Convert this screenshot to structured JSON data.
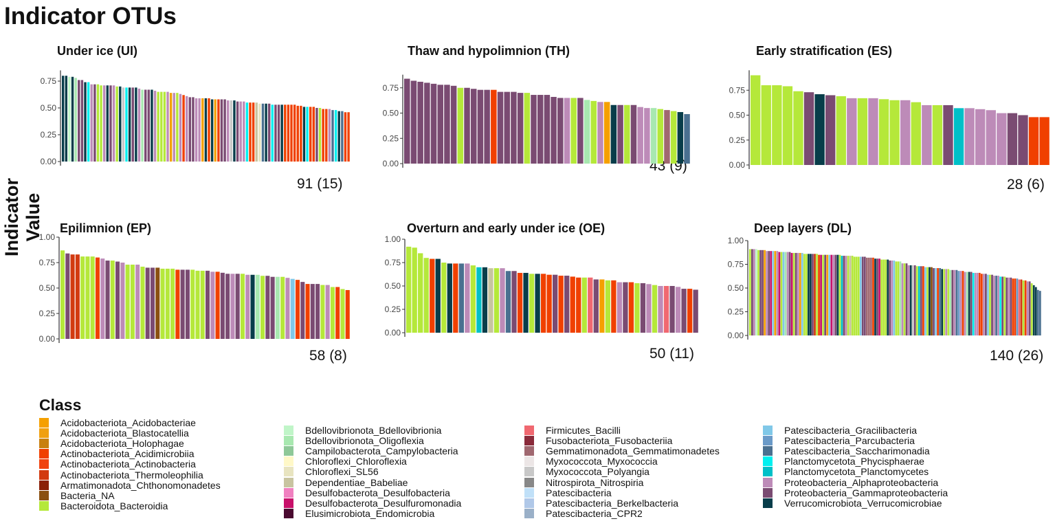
{
  "title": "Indicator OTUs",
  "y_axis_label": "Indicator Value",
  "palette": {
    "O": "#f5a000",
    "Bla": "#f0a010",
    "Hol": "#c88010",
    "R": "#f04000",
    "Ac": "#f04410",
    "T": "#d23a10",
    "Ch": "#8a2008",
    "Bn": "#8a5010",
    "B": "#b5e83a",
    "Bd": "#c0f5c8",
    "Ob": "#a8e8b0",
    "Ca": "#8ec898",
    "Cl": "#fff8c8",
    "C56": "#e8e4c0",
    "Dp": "#c8c4a0",
    "Df": "#f080c0",
    "Ds": "#c8106a",
    "E": "#4a0a30",
    "F": "#f06870",
    "Fu": "#8a2a3a",
    "Gm": "#a06870",
    "Mx": "#ece6e6",
    "Pg": "#c8c8c8",
    "Ni": "#888888",
    "Pa": "#c0e0f8",
    "Be": "#b0c8e8",
    "CPR": "#9ab0c8",
    "Gr": "#80c8e8",
    "P": "#6a9ac8",
    "S": "#4a7090",
    "Ph": "#00f0f0",
    "Pl": "#00c0c8",
    "A": "#bd8bb8",
    "G": "#7a4b72",
    "V": "#083d4a"
  },
  "chart_data": [
    {
      "type": "bar",
      "id": "UI",
      "title": "Under ice (UI)",
      "count_label": "91 (15)",
      "ylim": [
        0,
        0.85
      ],
      "yticks": [
        "0.00",
        "0.25",
        "0.50",
        "0.75"
      ],
      "values": [
        0.8,
        0.8,
        0.79,
        0.79,
        0.78,
        0.76,
        0.76,
        0.74,
        0.74,
        0.72,
        0.72,
        0.72,
        0.71,
        0.71,
        0.71,
        0.71,
        0.71,
        0.7,
        0.7,
        0.69,
        0.69,
        0.69,
        0.69,
        0.69,
        0.68,
        0.67,
        0.67,
        0.67,
        0.67,
        0.66,
        0.65,
        0.65,
        0.65,
        0.65,
        0.64,
        0.64,
        0.64,
        0.63,
        0.62,
        0.61,
        0.6,
        0.6,
        0.59,
        0.59,
        0.59,
        0.59,
        0.59,
        0.58,
        0.58,
        0.58,
        0.58,
        0.58,
        0.57,
        0.57,
        0.57,
        0.56,
        0.56,
        0.56,
        0.55,
        0.55,
        0.55,
        0.55,
        0.54,
        0.54,
        0.54,
        0.54,
        0.53,
        0.53,
        0.53,
        0.53,
        0.53,
        0.53,
        0.53,
        0.53,
        0.52,
        0.52,
        0.51,
        0.51,
        0.51,
        0.51,
        0.5,
        0.5,
        0.49,
        0.49,
        0.49,
        0.48,
        0.48,
        0.47,
        0.47,
        0.46,
        0.46
      ],
      "classes": [
        "V",
        "V",
        "Bd",
        "V",
        "Ob",
        "G",
        "G",
        "V",
        "Ph",
        "A",
        "G",
        "B",
        "B",
        "A",
        "V",
        "G",
        "A",
        "B",
        "V",
        "Pg",
        "Ph",
        "V",
        "G",
        "V",
        "A",
        "Ob",
        "G",
        "G",
        "V",
        "A",
        "B",
        "B",
        "B",
        "A",
        "O",
        "A",
        "B",
        "A",
        "R",
        "A",
        "G",
        "G",
        "A",
        "A",
        "O",
        "V",
        "R",
        "V",
        "O",
        "R",
        "G",
        "G",
        "A",
        "Pg",
        "V",
        "G",
        "A",
        "A",
        "Ph",
        "R",
        "R",
        "Dp",
        "C56",
        "S",
        "V",
        "G",
        "Ph",
        "G",
        "G",
        "V",
        "R",
        "R",
        "R",
        "R",
        "R",
        "R",
        "V",
        "Ph",
        "R",
        "R",
        "G",
        "B",
        "R",
        "R",
        "A",
        "S",
        "Ph",
        "V",
        "S",
        "R",
        "R"
      ]
    },
    {
      "type": "bar",
      "id": "TH",
      "title": "Thaw and hypolimnion (TH)",
      "count_label": "43 (9)",
      "ylim": [
        0,
        0.88
      ],
      "yticks": [
        "0.00",
        "0.25",
        "0.50",
        "0.75"
      ],
      "values": [
        0.84,
        0.82,
        0.81,
        0.8,
        0.79,
        0.78,
        0.78,
        0.77,
        0.75,
        0.75,
        0.74,
        0.73,
        0.73,
        0.73,
        0.71,
        0.71,
        0.71,
        0.7,
        0.7,
        0.68,
        0.68,
        0.68,
        0.66,
        0.65,
        0.65,
        0.65,
        0.65,
        0.63,
        0.62,
        0.61,
        0.61,
        0.58,
        0.58,
        0.58,
        0.58,
        0.56,
        0.55,
        0.55,
        0.54,
        0.53,
        0.52,
        0.51,
        0.49
      ],
      "classes": [
        "G",
        "G",
        "G",
        "G",
        "G",
        "G",
        "G",
        "G",
        "B",
        "G",
        "G",
        "G",
        "G",
        "R",
        "G",
        "G",
        "G",
        "G",
        "B",
        "G",
        "G",
        "G",
        "G",
        "G",
        "A",
        "B",
        "G",
        "Ob",
        "B",
        "A",
        "O",
        "V",
        "G",
        "B",
        "G",
        "A",
        "A",
        "Ob",
        "B",
        "Gm",
        "B",
        "V",
        "S"
      ]
    },
    {
      "type": "bar",
      "id": "ES",
      "title": "Early stratification (ES)",
      "count_label": "28 (6)",
      "ylim": [
        0,
        0.95
      ],
      "yticks": [
        "0.00",
        "0.25",
        "0.50",
        "0.75"
      ],
      "values": [
        0.9,
        0.8,
        0.8,
        0.79,
        0.74,
        0.73,
        0.71,
        0.7,
        0.69,
        0.67,
        0.67,
        0.67,
        0.66,
        0.65,
        0.65,
        0.63,
        0.6,
        0.6,
        0.6,
        0.57,
        0.57,
        0.56,
        0.55,
        0.52,
        0.52,
        0.5,
        0.48,
        0.48
      ],
      "classes": [
        "B",
        "B",
        "B",
        "B",
        "B",
        "G",
        "V",
        "G",
        "B",
        "A",
        "B",
        "A",
        "B",
        "B",
        "A",
        "B",
        "A",
        "B",
        "G",
        "Pl",
        "A",
        "A",
        "A",
        "A",
        "G",
        "G",
        "R",
        "R"
      ]
    },
    {
      "type": "bar",
      "id": "EP",
      "title": "Epilimnion (EP)",
      "count_label": "58 (8)",
      "ylim": [
        0,
        1
      ],
      "yticks": [
        "0.00",
        "0.25",
        "0.50",
        "0.75",
        "1.00"
      ],
      "values": [
        0.87,
        0.84,
        0.83,
        0.83,
        0.81,
        0.81,
        0.81,
        0.8,
        0.79,
        0.77,
        0.77,
        0.76,
        0.75,
        0.73,
        0.73,
        0.73,
        0.71,
        0.7,
        0.7,
        0.7,
        0.69,
        0.69,
        0.69,
        0.68,
        0.68,
        0.68,
        0.68,
        0.67,
        0.67,
        0.67,
        0.66,
        0.66,
        0.65,
        0.64,
        0.64,
        0.64,
        0.64,
        0.63,
        0.63,
        0.63,
        0.62,
        0.62,
        0.61,
        0.61,
        0.61,
        0.6,
        0.59,
        0.58,
        0.56,
        0.54,
        0.54,
        0.54,
        0.53,
        0.53,
        0.51,
        0.51,
        0.49,
        0.48
      ],
      "classes": [
        "B",
        "G",
        "T",
        "T",
        "B",
        "B",
        "B",
        "R",
        "A",
        "G",
        "B",
        "G",
        "A",
        "B",
        "B",
        "A",
        "B",
        "G",
        "G",
        "Bn",
        "B",
        "B",
        "B",
        "R",
        "G",
        "G",
        "B",
        "B",
        "B",
        "G",
        "A",
        "R",
        "G",
        "G",
        "A",
        "G",
        "B",
        "A",
        "V",
        "Ob",
        "B",
        "G",
        "G",
        "Ob",
        "B",
        "A",
        "Gr",
        "R",
        "G",
        "R",
        "G",
        "G",
        "B",
        "A",
        "B",
        "R",
        "B",
        "R"
      ]
    },
    {
      "type": "bar",
      "id": "OE",
      "title": "Overturn and early under ice (OE)",
      "count_label": "50 (11)",
      "ylim": [
        0,
        1
      ],
      "yticks": [
        "0.00",
        "0.25",
        "0.50",
        "0.75",
        "1.00"
      ],
      "values": [
        0.92,
        0.91,
        0.85,
        0.8,
        0.79,
        0.79,
        0.75,
        0.74,
        0.74,
        0.74,
        0.74,
        0.72,
        0.7,
        0.7,
        0.69,
        0.69,
        0.69,
        0.66,
        0.66,
        0.64,
        0.64,
        0.63,
        0.63,
        0.63,
        0.62,
        0.62,
        0.61,
        0.61,
        0.6,
        0.59,
        0.59,
        0.59,
        0.57,
        0.57,
        0.56,
        0.56,
        0.54,
        0.54,
        0.54,
        0.53,
        0.53,
        0.52,
        0.51,
        0.5,
        0.5,
        0.5,
        0.49,
        0.47,
        0.47,
        0.46
      ],
      "classes": [
        "B",
        "B",
        "B",
        "B",
        "R",
        "V",
        "B",
        "V",
        "R",
        "S",
        "A",
        "B",
        "Pl",
        "V",
        "Dp",
        "B",
        "A",
        "S",
        "G",
        "R",
        "V",
        "B",
        "V",
        "R",
        "R",
        "G",
        "R",
        "G",
        "R",
        "R",
        "B",
        "F",
        "G",
        "O",
        "B",
        "R",
        "A",
        "G",
        "R",
        "B",
        "G",
        "A",
        "B",
        "A",
        "F",
        "G",
        "A",
        "G",
        "R",
        "G"
      ]
    },
    {
      "type": "bar",
      "id": "DL",
      "title": "Deep layers (DL)",
      "count_label": "140 (26)",
      "ylim": [
        0,
        1
      ],
      "yticks": [
        "0.00",
        "0.25",
        "0.50",
        "0.75",
        "1.00"
      ],
      "values": [
        0.91,
        0.91,
        0.91,
        0.91,
        0.9,
        0.9,
        0.9,
        0.9,
        0.89,
        0.89,
        0.89,
        0.89,
        0.89,
        0.89,
        0.88,
        0.88,
        0.88,
        0.88,
        0.88,
        0.88,
        0.87,
        0.87,
        0.87,
        0.87,
        0.87,
        0.87,
        0.86,
        0.86,
        0.86,
        0.86,
        0.86,
        0.86,
        0.86,
        0.85,
        0.85,
        0.85,
        0.85,
        0.85,
        0.85,
        0.85,
        0.85,
        0.85,
        0.85,
        0.85,
        0.84,
        0.84,
        0.84,
        0.84,
        0.84,
        0.84,
        0.83,
        0.83,
        0.83,
        0.83,
        0.83,
        0.83,
        0.82,
        0.82,
        0.82,
        0.82,
        0.81,
        0.81,
        0.81,
        0.8,
        0.8,
        0.8,
        0.8,
        0.79,
        0.79,
        0.79,
        0.78,
        0.78,
        0.78,
        0.76,
        0.76,
        0.76,
        0.74,
        0.74,
        0.74,
        0.74,
        0.73,
        0.73,
        0.73,
        0.73,
        0.72,
        0.72,
        0.72,
        0.72,
        0.71,
        0.71,
        0.71,
        0.71,
        0.7,
        0.7,
        0.7,
        0.7,
        0.69,
        0.69,
        0.69,
        0.69,
        0.68,
        0.68,
        0.68,
        0.67,
        0.67,
        0.67,
        0.67,
        0.66,
        0.66,
        0.66,
        0.66,
        0.65,
        0.65,
        0.65,
        0.64,
        0.64,
        0.64,
        0.63,
        0.63,
        0.63,
        0.62,
        0.62,
        0.62,
        0.61,
        0.61,
        0.61,
        0.6,
        0.6,
        0.6,
        0.59,
        0.59,
        0.58,
        0.58,
        0.57,
        0.57,
        0.55,
        0.53,
        0.51,
        0.48,
        0.47
      ],
      "classes": [
        "B",
        "G",
        "A",
        "Bd",
        "B",
        "G",
        "G",
        "O",
        "A",
        "G",
        "Ds",
        "Gr",
        "O",
        "A",
        "Ds",
        "B",
        "Gr",
        "Ob",
        "A",
        "G",
        "Ds",
        "B",
        "G",
        "A",
        "O",
        "Gr",
        "B",
        "B",
        "V",
        "V",
        "G",
        "T",
        "B",
        "R",
        "Ds",
        "B",
        "G",
        "O",
        "Gr",
        "Ds",
        "A",
        "G",
        "V",
        "B",
        "Pl",
        "G",
        "A",
        "B",
        "Dp",
        "B",
        "B",
        "B",
        "B",
        "Gr",
        "G",
        "G",
        "Gm",
        "Gm",
        "Gm",
        "R",
        "V",
        "G",
        "Ds",
        "B",
        "B",
        "B",
        "V",
        "G",
        "A",
        "Gr",
        "B",
        "B",
        "Ob",
        "A",
        "B",
        "G",
        "A",
        "V",
        "Pg",
        "G",
        "B",
        "Pl",
        "G",
        "R",
        "Gr",
        "B",
        "V",
        "Bn",
        "G",
        "Gr",
        "R",
        "S",
        "V",
        "B",
        "A",
        "B",
        "Ob",
        "G",
        "A",
        "S",
        "P",
        "A",
        "R",
        "A",
        "Ob",
        "V",
        "G",
        "Ph",
        "A",
        "A",
        "R",
        "R",
        "A",
        "G",
        "Gr",
        "B",
        "G",
        "A",
        "S",
        "A",
        "Ph",
        "G",
        "B",
        "G",
        "A",
        "G",
        "R",
        "R",
        "P",
        "F",
        "T",
        "B",
        "R",
        "A",
        "G",
        "B",
        "V",
        "V",
        "S",
        "S"
      ]
    }
  ],
  "legend": {
    "title": "Class",
    "columns": [
      [
        {
          "label": "Acidobacteriota_Acidobacteriae",
          "color": "#f5a000"
        },
        {
          "label": "Acidobacteriota_Blastocatellia",
          "color": "#f0a010"
        },
        {
          "label": "Acidobacteriota_Holophagae",
          "color": "#c88010"
        },
        {
          "label": "Actinobacteriota_Acidimicrobiia",
          "color": "#f04000"
        },
        {
          "label": "Actinobacteriota_Actinobacteria",
          "color": "#f04410"
        },
        {
          "label": "Actinobacteriota_Thermoleophilia",
          "color": "#d23a10"
        },
        {
          "label": "Armatimonadota_Chthonomonadetes",
          "color": "#8a2008"
        },
        {
          "label": "Bacteria_NA",
          "color": "#8a5010"
        },
        {
          "label": "Bacteroidota_Bacteroidia",
          "color": "#b5e83a"
        }
      ],
      [
        {
          "label": "Bdellovibrionota_Bdellovibrionia",
          "color": "#c0f5c8"
        },
        {
          "label": "Bdellovibrionota_Oligoflexia",
          "color": "#a8e8b0"
        },
        {
          "label": "Campilobacterota_Campylobacteria",
          "color": "#8ec898"
        },
        {
          "label": "Chloroflexi_Chloroflexia",
          "color": "#fff8c8"
        },
        {
          "label": "Chloroflexi_SL56",
          "color": "#e8e4c0"
        },
        {
          "label": "Dependentiae_Babeliae",
          "color": "#c8c4a0"
        },
        {
          "label": "Desulfobacterota_Desulfobacteria",
          "color": "#f080c0"
        },
        {
          "label": "Desulfobacterota_Desulfuromonadia",
          "color": "#c8106a"
        },
        {
          "label": "Elusimicrobiota_Endomicrobia",
          "color": "#4a0a30"
        }
      ],
      [
        {
          "label": "Firmicutes_Bacilli",
          "color": "#f06870"
        },
        {
          "label": "Fusobacteriota_Fusobacteriia",
          "color": "#8a2a3a"
        },
        {
          "label": "Gemmatimonadota_Gemmatimonadetes",
          "color": "#a06870"
        },
        {
          "label": "Myxococcota_Myxococcia",
          "color": "#ece6e6"
        },
        {
          "label": "Myxococcota_Polyangia",
          "color": "#c8c8c8"
        },
        {
          "label": "Nitrospirota_Nitrospiria",
          "color": "#888888"
        },
        {
          "label": "Patescibacteria",
          "color": "#c0e0f8"
        },
        {
          "label": "Patescibacteria_Berkelbacteria",
          "color": "#b0c8e8"
        },
        {
          "label": "Patescibacteria_CPR2",
          "color": "#9ab0c8"
        }
      ],
      [
        {
          "label": "Patescibacteria_Gracilibacteria",
          "color": "#80c8e8"
        },
        {
          "label": "Patescibacteria_Parcubacteria",
          "color": "#6a9ac8"
        },
        {
          "label": "Patescibacteria_Saccharimonadia",
          "color": "#4a7090"
        },
        {
          "label": "Planctomycetota_Phycisphaerae",
          "color": "#00f0f0"
        },
        {
          "label": "Planctomycetota_Planctomycetes",
          "color": "#00c0c8"
        },
        {
          "label": "Proteobacteria_Alphaproteobacteria",
          "color": "#bd8bb8"
        },
        {
          "label": "Proteobacteria_Gammaproteobacteria",
          "color": "#7a4b72"
        },
        {
          "label": "Verrucomicrobiota_Verrucomicrobiae",
          "color": "#083d4a"
        }
      ]
    ]
  }
}
